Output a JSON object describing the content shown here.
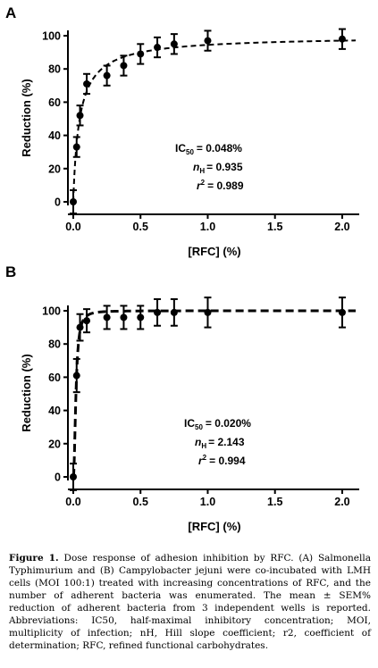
{
  "chart_data": [
    {
      "panel": "A",
      "type": "scatter",
      "xlabel": "[RFC] (%)",
      "ylabel": "Reduction (%)",
      "xlim": [
        0,
        2.1
      ],
      "ylim": [
        0,
        100
      ],
      "xticks": [
        "0.0",
        "0.5",
        "1.0",
        "1.5",
        "2.0"
      ],
      "yticks": [
        "0",
        "20",
        "40",
        "60",
        "80",
        "100"
      ],
      "x": [
        0.0,
        0.025,
        0.05,
        0.1,
        0.25,
        0.375,
        0.5,
        0.625,
        0.75,
        1.0,
        2.0
      ],
      "y": [
        0,
        33,
        52,
        71,
        76,
        82,
        89,
        93,
        95,
        97,
        98
      ],
      "err": [
        7,
        6,
        6,
        6,
        6,
        6,
        6,
        6,
        6,
        6,
        6
      ],
      "fit": {
        "ic50": 0.048,
        "nh": 0.935,
        "top": 100
      },
      "annotations": {
        "ic50_label": "IC",
        "ic50_sub": "50",
        "ic50_value": "= 0.048%",
        "nh_label": "n",
        "nh_sub": "H",
        "nh_value": "= 0.935",
        "r2_label": "r",
        "r2_sup": "2",
        "r2_value": "= 0.989"
      }
    },
    {
      "panel": "B",
      "type": "scatter",
      "xlabel": "[RFC] (%)",
      "ylabel": "Reduction (%)",
      "xlim": [
        0,
        2.1
      ],
      "ylim": [
        0,
        100
      ],
      "xticks": [
        "0.0",
        "0.5",
        "1.0",
        "1.5",
        "2.0"
      ],
      "yticks": [
        "0",
        "20",
        "40",
        "60",
        "80",
        "100"
      ],
      "x": [
        0.0,
        0.025,
        0.05,
        0.1,
        0.25,
        0.375,
        0.5,
        0.625,
        0.75,
        1.0,
        2.0
      ],
      "y": [
        0,
        61,
        90,
        94,
        96,
        96,
        96,
        99,
        99,
        99,
        99
      ],
      "err": [
        8,
        10,
        8,
        7,
        7,
        7,
        7,
        8,
        8,
        9,
        9
      ],
      "fit": {
        "ic50": 0.02,
        "nh": 2.143,
        "top": 100
      },
      "annotations": {
        "ic50_label": "IC",
        "ic50_sub": "50",
        "ic50_value": "= 0.020%",
        "nh_label": "n",
        "nh_sub": "H",
        "nh_value": "= 2.143",
        "r2_label": "r",
        "r2_sup": "2",
        "r2_value": "= 0.994"
      }
    }
  ],
  "caption": {
    "label": "Figure 1.",
    "text": " Dose response of adhesion inhibition by RFC. (A) Salmonella Typhimurium and (B) Campylobacter jejuni were co-incubated with LMH cells (MOI 100:1) treated with increasing concentrations of RFC, and the number of adherent bacteria was enumerated. The mean ± SEM% reduction of adherent bacteria from 3 independent wells is reported. Abbreviations: IC50, half-maximal inhibitory concentration; MOI, multiplicity of infection; nH, Hill slope coefficient; r2, coefficient of determination; RFC, refined functional carbohydrates."
  }
}
